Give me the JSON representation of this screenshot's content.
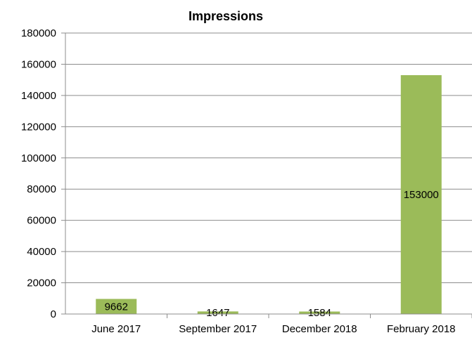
{
  "chart_data": {
    "type": "bar",
    "title": "Impressions",
    "categories": [
      "June 2017",
      "September 2017",
      "December 2018",
      "February 2018"
    ],
    "series": [
      {
        "values": [
          9662,
          1647,
          1584,
          153000
        ],
        "color": "#9bbb59"
      }
    ],
    "ylim": [
      0,
      180000
    ],
    "ytick_step": 20000,
    "ytick_labels": [
      "0",
      "20000",
      "40000",
      "60000",
      "80000",
      "100000",
      "120000",
      "140000",
      "160000",
      "180000"
    ],
    "data_labels": [
      "9662",
      "1647",
      "1584",
      "153000"
    ],
    "grid": true,
    "legend": "none",
    "xlabel": "",
    "ylabel": ""
  }
}
